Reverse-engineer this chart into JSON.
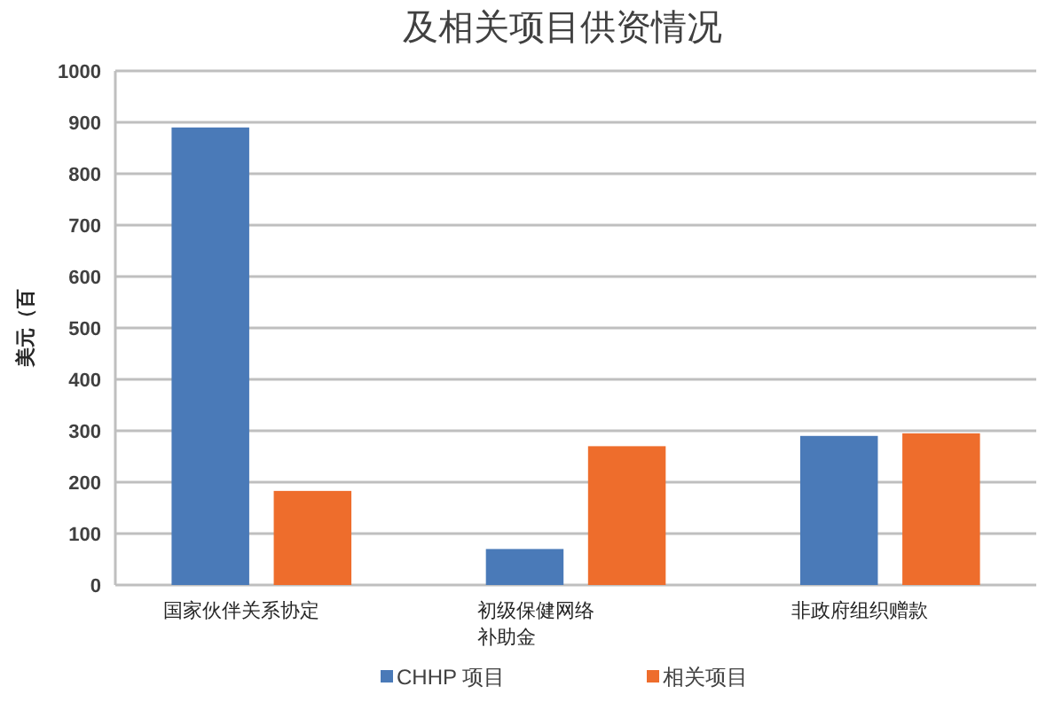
{
  "chart_data": {
    "type": "bar",
    "title": "及相关项目供资情况",
    "ylabel": "美元（百",
    "categories": [
      "国家伙伴关系协定",
      "初级保健网络补助金",
      "非政府组织赠款"
    ],
    "series": [
      {
        "name": "CHHP 项目",
        "color": "#4a7ab8",
        "values": [
          890,
          70,
          290
        ]
      },
      {
        "name": "相关项目",
        "color": "#ee6d2c",
        "values": [
          183,
          270,
          295
        ]
      }
    ],
    "ylim": [
      0,
      1000
    ],
    "yticks": [
      0,
      100,
      200,
      300,
      400,
      500,
      600,
      700,
      800,
      900,
      1000
    ],
    "grid": "y",
    "legend": "bottom"
  }
}
